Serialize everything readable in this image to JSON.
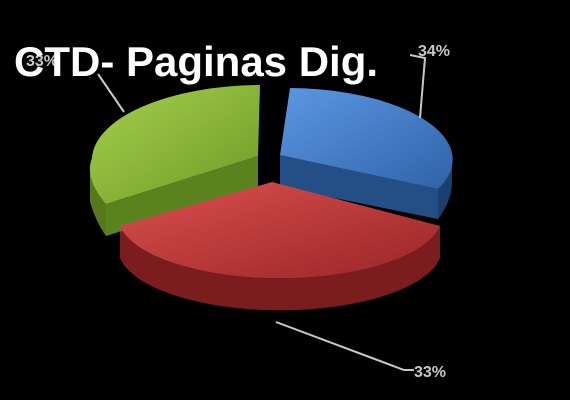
{
  "chart_data": {
    "type": "pie",
    "title": "CTD- Paginas Dig.",
    "values": [
      34,
      33,
      33
    ],
    "data_labels": [
      "34%",
      "33%",
      "33%"
    ],
    "colors": [
      "#3f7fd3",
      "#c8373a",
      "#8fbf3a"
    ],
    "label_color": "#c8c8c8",
    "style": "3d-exploded"
  }
}
